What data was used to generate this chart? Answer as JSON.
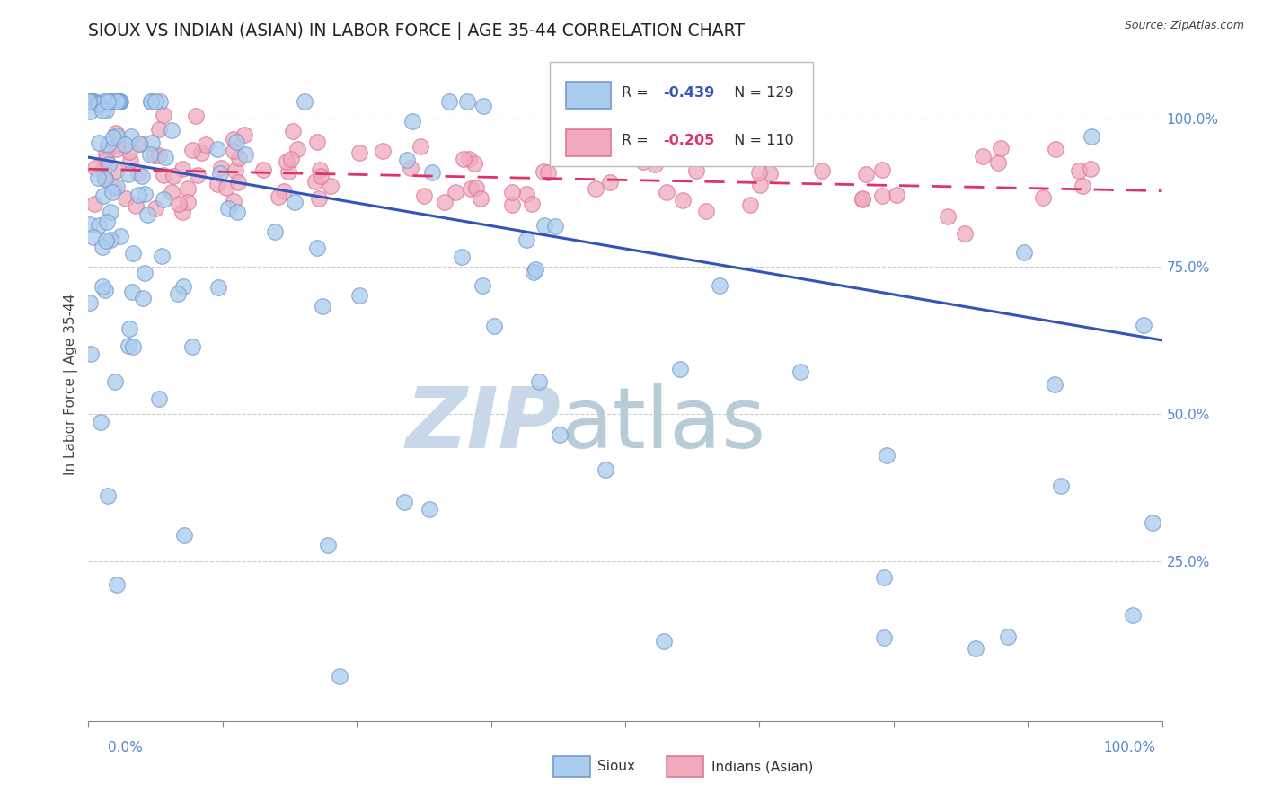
{
  "title": "SIOUX VS INDIAN (ASIAN) IN LABOR FORCE | AGE 35-44 CORRELATION CHART",
  "source_text": "Source: ZipAtlas.com",
  "ylabel": "In Labor Force | Age 35-44",
  "xlim": [
    0.0,
    1.0
  ],
  "ylim": [
    -0.02,
    1.12
  ],
  "y_tick_vals": [
    0.25,
    0.5,
    0.75,
    1.0
  ],
  "y_tick_labels": [
    "25.0%",
    "50.0%",
    "75.0%",
    "100.0%"
  ],
  "sioux_color": "#aaccee",
  "sioux_edge_color": "#7799cc",
  "indian_color": "#f0aabb",
  "indian_edge_color": "#dd7799",
  "sioux_R": -0.439,
  "sioux_N": 129,
  "indian_R": -0.205,
  "indian_N": 110,
  "sioux_line_color": "#3355bb",
  "indian_line_color": "#dd3366",
  "watermark_zip": "ZIP",
  "watermark_atlas": "atlas",
  "watermark_color_zip": "#c8d8e8",
  "watermark_color_atlas": "#c8d8e8",
  "legend_sioux_label": "Sioux",
  "legend_indian_label": "Indians (Asian)",
  "background_color": "#ffffff",
  "grid_color": "#cccccc",
  "title_color": "#222222",
  "sioux_line_start_x": 0.0,
  "sioux_line_start_y": 0.935,
  "sioux_line_end_x": 1.0,
  "sioux_line_end_y": 0.625,
  "indian_line_start_x": 0.0,
  "indian_line_start_y": 0.915,
  "indian_line_end_x": 1.0,
  "indian_line_end_y": 0.878
}
